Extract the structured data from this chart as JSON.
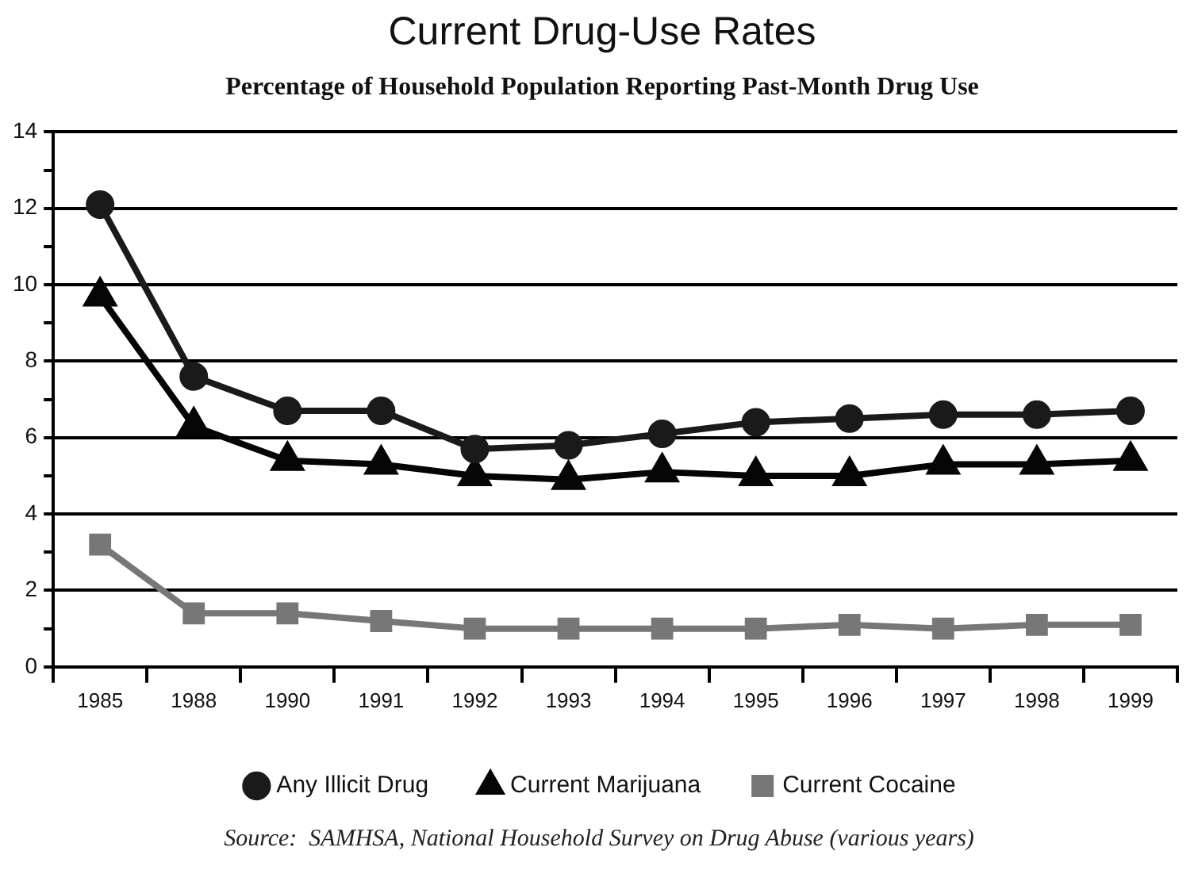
{
  "chart_data": {
    "type": "line",
    "title": "Current Drug-Use Rates",
    "subtitle": "Percentage of Household Population Reporting Past-Month Drug Use",
    "categories": [
      "1985",
      "1988",
      "1990",
      "1991",
      "1992",
      "1993",
      "1994",
      "1995",
      "1996",
      "1997",
      "1998",
      "1999"
    ],
    "series": [
      {
        "name": "Any Illicit Drug",
        "color": "#1a1a1a",
        "marker": "circle",
        "values": [
          12.1,
          7.6,
          6.7,
          6.7,
          5.7,
          5.8,
          6.1,
          6.4,
          6.5,
          6.6,
          6.6,
          6.7
        ]
      },
      {
        "name": "Current Marijuana",
        "color": "#050505",
        "marker": "triangle",
        "values": [
          9.7,
          6.3,
          5.4,
          5.3,
          5.0,
          4.9,
          5.1,
          5.0,
          5.0,
          5.3,
          5.3,
          5.4
        ]
      },
      {
        "name": "Current Cocaine",
        "color": "#777777",
        "marker": "square",
        "values": [
          3.2,
          1.4,
          1.4,
          1.2,
          1.0,
          1.0,
          1.0,
          1.0,
          1.1,
          1.0,
          1.1,
          1.1
        ]
      }
    ],
    "ylim": [
      0,
      14
    ],
    "yticks": [
      0,
      {
        "value": 1,
        "label": null
      },
      2,
      {
        "value": 3,
        "label": null
      },
      4,
      {
        "value": 5,
        "label": null
      },
      6,
      {
        "value": 7,
        "label": null
      },
      8,
      {
        "value": 9,
        "label": null
      },
      10,
      {
        "value": 11,
        "label": null
      },
      12,
      {
        "value": 13,
        "label": null
      },
      14
    ],
    "grid": "y",
    "legend": "bottom",
    "line_style": "solid",
    "annotations": [
      "Source:  SAMHSA, National Household Survey on Drug Abuse (various years)"
    ]
  }
}
